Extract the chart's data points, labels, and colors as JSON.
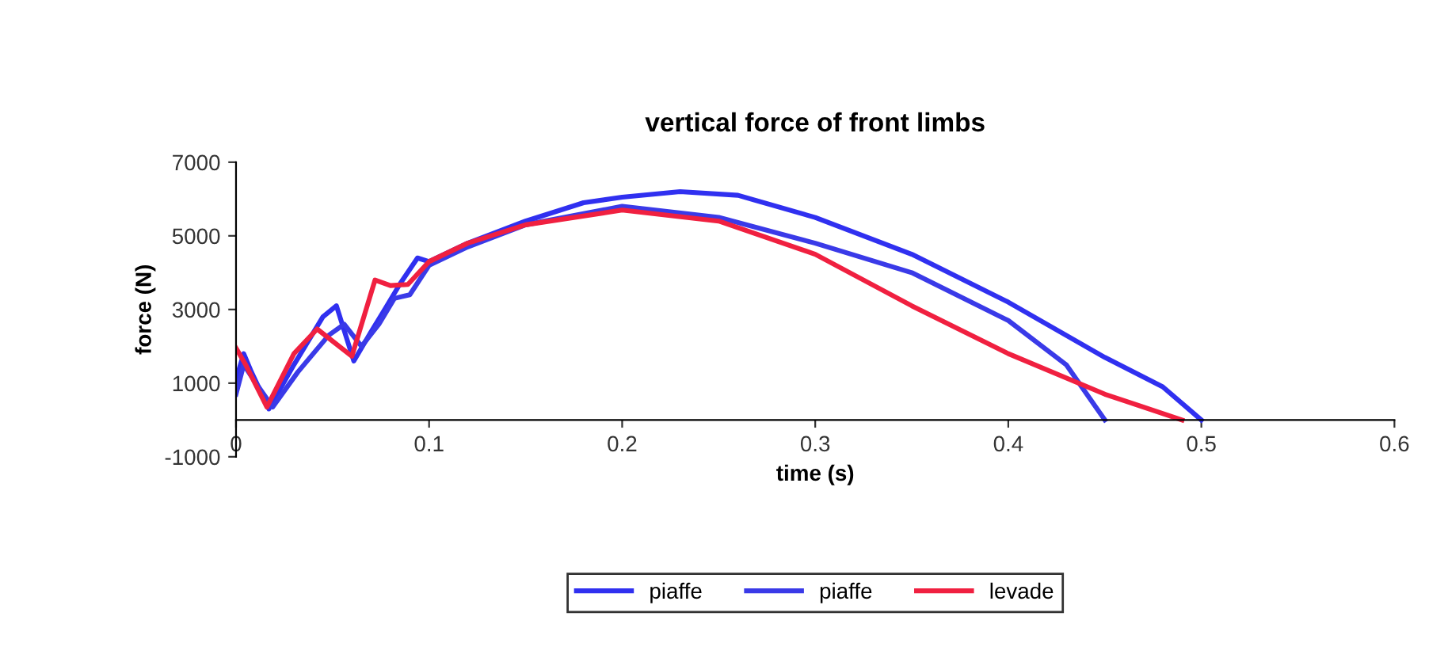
{
  "chart_data": {
    "type": "line",
    "title": "vertical force of front limbs",
    "xlabel": "time (s)",
    "ylabel": "force (N)",
    "xlim": [
      0,
      0.6
    ],
    "xticks": [
      0,
      0.1,
      0.2,
      0.3,
      0.4,
      0.5,
      0.6
    ],
    "ylim": [
      -1000,
      7000
    ],
    "yticks": [
      -1000,
      1000,
      3000,
      5000,
      7000
    ],
    "grid": false,
    "legend": "bottom",
    "marker": "none",
    "line_style": "solid",
    "series": [
      {
        "name": "piaffe",
        "color": "#3030f0",
        "x": [
          0,
          0.004,
          0.008,
          0.017,
          0.03,
          0.045,
          0.052,
          0.061,
          0.07,
          0.077,
          0.085,
          0.094,
          0.1,
          0.12,
          0.15,
          0.18,
          0.2,
          0.23,
          0.26,
          0.3,
          0.35,
          0.4,
          0.45,
          0.48,
          0.5
        ],
        "values": [
          1100,
          1800,
          1300,
          300,
          1500,
          2800,
          3100,
          1600,
          2400,
          3000,
          3700,
          4400,
          4300,
          4800,
          5400,
          5900,
          6050,
          6200,
          6100,
          5500,
          4500,
          3200,
          1700,
          900,
          0
        ]
      },
      {
        "name": "piaffe",
        "color": "#3a3ae8",
        "x": [
          0,
          0.004,
          0.009,
          0.019,
          0.032,
          0.048,
          0.056,
          0.065,
          0.074,
          0.082,
          0.09,
          0.1,
          0.12,
          0.15,
          0.2,
          0.25,
          0.3,
          0.35,
          0.4,
          0.43,
          0.45
        ],
        "values": [
          700,
          1500,
          1100,
          350,
          1300,
          2300,
          2600,
          2000,
          2600,
          3300,
          3400,
          4200,
          4700,
          5300,
          5800,
          5500,
          4800,
          4000,
          2700,
          1500,
          0
        ]
      },
      {
        "name": "levade",
        "color": "#f02040",
        "x": [
          0,
          0.005,
          0.016,
          0.03,
          0.042,
          0.06,
          0.072,
          0.08,
          0.089,
          0.1,
          0.12,
          0.15,
          0.2,
          0.25,
          0.3,
          0.35,
          0.4,
          0.45,
          0.49
        ],
        "values": [
          1950,
          1500,
          350,
          1800,
          2470,
          1730,
          3800,
          3650,
          3680,
          4300,
          4800,
          5300,
          5700,
          5400,
          4500,
          3100,
          1800,
          700,
          0
        ]
      }
    ]
  }
}
